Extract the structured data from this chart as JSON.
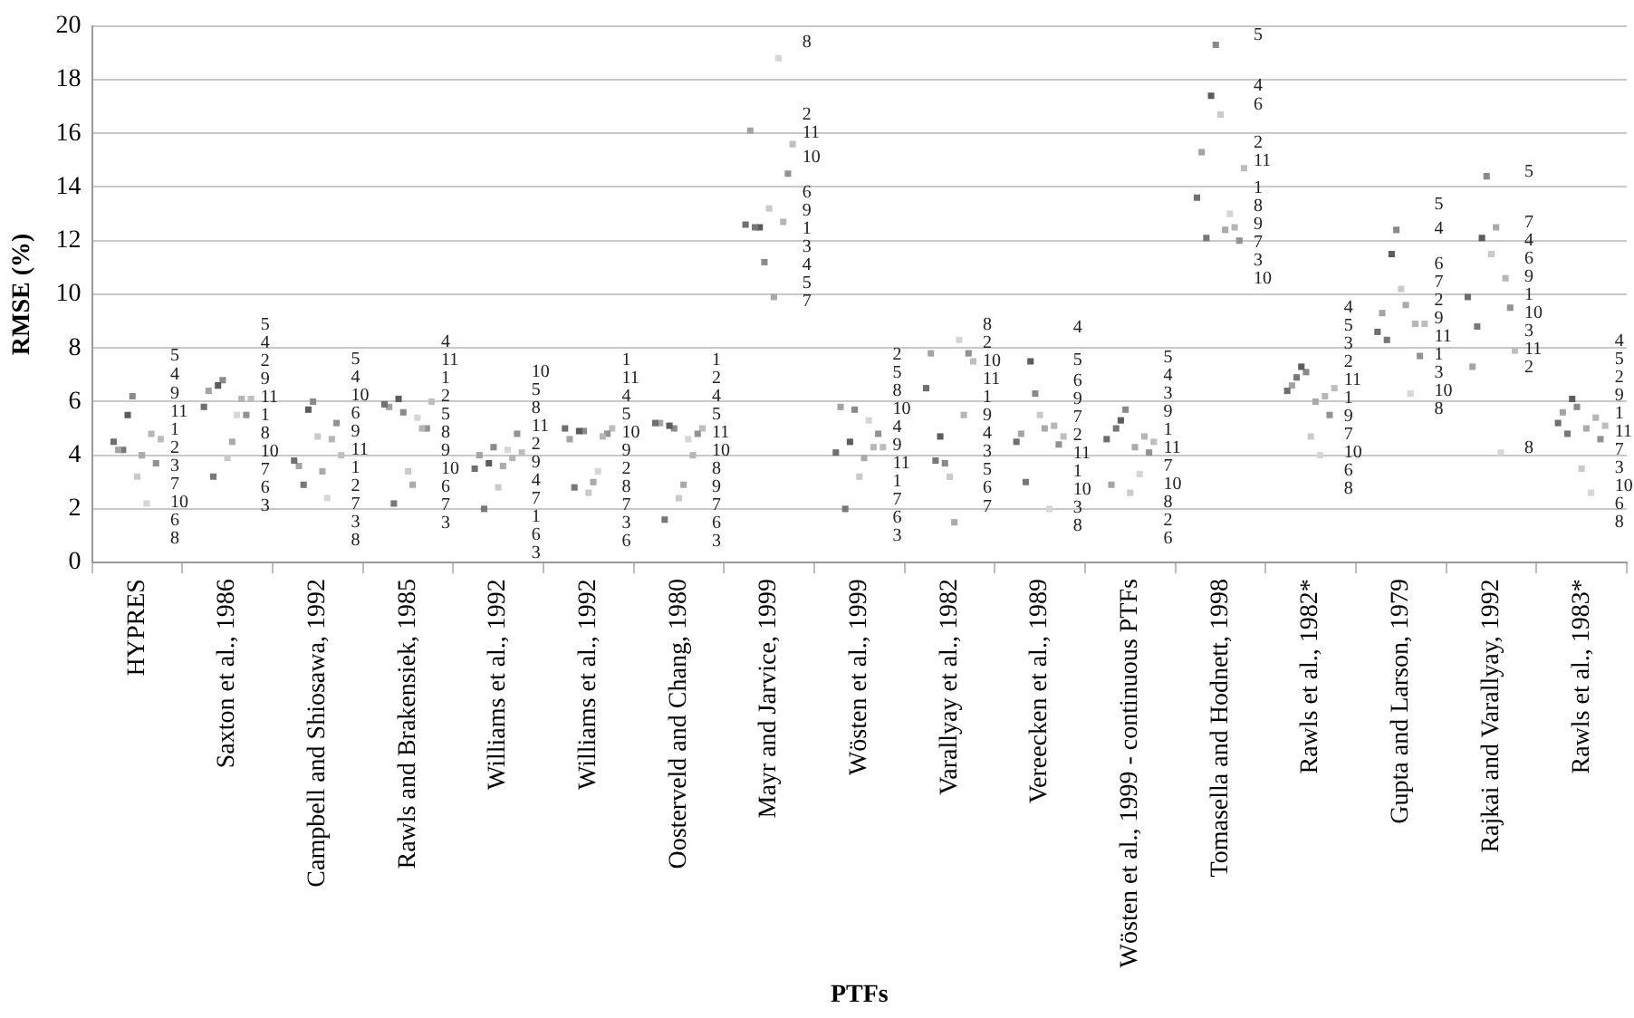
{
  "chart_data": {
    "type": "scatter",
    "xlabel": "PTFs",
    "ylabel": "RMSE (%)",
    "categories": [
      "HYPRES",
      "Saxton et al., 1986",
      "Campbell and Shiosawa, 1992",
      "Rawls and Brakensiek, 1985",
      "Williams et al., 1992",
      "Williams et al., 1992",
      "Oosterveld and Chang, 1980",
      "Mayr and Jarvice, 1999",
      "Wösten et al., 1999",
      "Varallyay et al., 1982",
      "Vereecken et al., 1989",
      "Wösten et al., 1999 - continuous PTFs",
      "Tomasella and Hodnett, 1998",
      "Rawls et al., 1982*",
      "Gupta and Larson, 1979",
      "Rajkai and Varallyay, 1992",
      "Rawls et al., 1983*"
    ],
    "ylim": [
      0,
      20
    ],
    "yticks": [
      0,
      2,
      4,
      6,
      8,
      10,
      12,
      14,
      16,
      18,
      20
    ],
    "grid": "y",
    "legend": false,
    "marker": "square",
    "series": [
      {
        "name": "1",
        "color": "#6f6f6f",
        "values": [
          4.5,
          5.8,
          3.8,
          5.9,
          3.5,
          5.0,
          5.2,
          12.6,
          4.1,
          6.5,
          4.5,
          4.6,
          13.6,
          6.4,
          8.6,
          9.9,
          5.2
        ]
      },
      {
        "name": "2",
        "color": "#a4a4a4",
        "values": [
          4.2,
          6.4,
          3.6,
          5.8,
          4.0,
          4.6,
          5.2,
          16.1,
          5.8,
          7.8,
          4.8,
          2.9,
          15.3,
          6.6,
          9.3,
          7.3,
          5.6
        ]
      },
      {
        "name": "3",
        "color": "#787878",
        "values": [
          4.2,
          3.2,
          2.9,
          2.2,
          2.0,
          2.8,
          1.6,
          12.5,
          2.0,
          3.8,
          3.0,
          5.0,
          12.1,
          6.9,
          8.3,
          8.8,
          4.8
        ]
      },
      {
        "name": "4",
        "color": "#5c5c5c",
        "values": [
          5.5,
          6.6,
          5.7,
          6.1,
          3.7,
          4.9,
          5.1,
          12.5,
          4.5,
          4.7,
          7.5,
          5.3,
          17.4,
          7.3,
          11.5,
          12.1,
          6.1
        ]
      },
      {
        "name": "5",
        "color": "#8a8a8a",
        "values": [
          6.2,
          6.8,
          6.0,
          5.6,
          4.3,
          4.9,
          5.0,
          11.2,
          5.7,
          3.7,
          6.3,
          5.7,
          19.3,
          7.1,
          12.4,
          14.4,
          5.8
        ]
      },
      {
        "name": "6",
        "color": "#cacaca",
        "values": [
          3.2,
          3.9,
          4.7,
          3.4,
          2.8,
          2.6,
          2.4,
          13.2,
          3.2,
          3.2,
          5.5,
          2.6,
          16.7,
          4.7,
          10.2,
          11.5,
          3.5
        ]
      },
      {
        "name": "7",
        "color": "#aaaaaa",
        "values": [
          4.0,
          4.5,
          3.4,
          2.9,
          3.6,
          3.0,
          2.9,
          9.9,
          3.9,
          1.5,
          5.0,
          4.3,
          12.4,
          6.0,
          9.6,
          12.5,
          5.0
        ]
      },
      {
        "name": "8",
        "color": "#d6d6d6",
        "values": [
          2.2,
          5.5,
          2.4,
          5.4,
          4.2,
          3.4,
          4.6,
          18.8,
          5.3,
          8.3,
          2.0,
          3.3,
          13.0,
          4.0,
          6.3,
          4.1,
          2.6
        ]
      },
      {
        "name": "9",
        "color": "#b6b6b6",
        "values": [
          4.8,
          6.1,
          4.6,
          5.0,
          3.9,
          4.7,
          4.0,
          12.7,
          4.3,
          5.5,
          5.1,
          4.7,
          12.5,
          6.2,
          8.9,
          10.6,
          5.4
        ]
      },
      {
        "name": "10",
        "color": "#929292",
        "values": [
          3.7,
          5.5,
          5.2,
          5.0,
          4.8,
          4.8,
          4.8,
          14.5,
          4.8,
          7.8,
          4.4,
          4.1,
          12.0,
          5.5,
          7.7,
          9.5,
          4.6
        ]
      },
      {
        "name": "11",
        "color": "#bebebe",
        "values": [
          4.6,
          6.1,
          4.0,
          6.0,
          4.1,
          5.0,
          5.0,
          15.6,
          4.3,
          7.5,
          4.7,
          4.5,
          14.7,
          6.5,
          8.9,
          7.9,
          5.1
        ]
      }
    ]
  }
}
